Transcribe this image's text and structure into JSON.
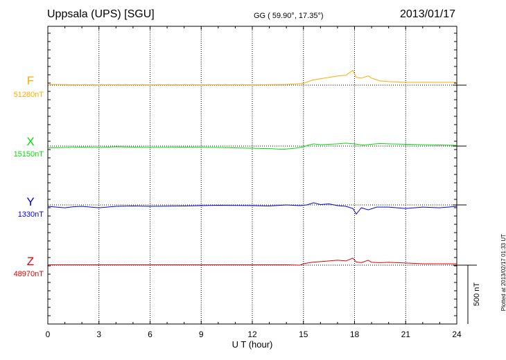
{
  "header": {
    "station": "Uppsala (UPS)  [SGU]",
    "coords": "GG ( 59.90°,  17.35°)",
    "date": "2013/01/17"
  },
  "credit": "Plotted at 2013/02/17 01:33 UT",
  "scale_label": "500 nT",
  "colors": {
    "F": "#ffaa00",
    "X": "#00dd00",
    "Y": "#0000dd",
    "Z": "#dd0000"
  },
  "chart_data": {
    "type": "line",
    "xlabel": "U T (hour)",
    "xlim": [
      0,
      24
    ],
    "x_ticks": [
      0,
      3,
      6,
      9,
      12,
      15,
      18,
      21,
      24
    ],
    "scale_bar_nT": 500,
    "components": [
      {
        "name": "F",
        "baseline": "51280nT",
        "x": [
          0,
          2,
          4,
          6,
          8,
          10,
          12,
          14,
          15,
          15.5,
          16,
          16.5,
          17,
          17.5,
          17.9,
          18.1,
          18.4,
          18.8,
          19,
          19.5,
          20,
          21,
          22,
          23,
          24
        ],
        "y": [
          2,
          1,
          1,
          1,
          1,
          1,
          1,
          2,
          5,
          14,
          18,
          22,
          26,
          28,
          42,
          22,
          20,
          26,
          20,
          12,
          10,
          8,
          8,
          8,
          8
        ]
      },
      {
        "name": "X",
        "baseline": "15150nT",
        "x": [
          0,
          1,
          2,
          3,
          4,
          6,
          8,
          10,
          12,
          13,
          13.8,
          14.5,
          15,
          15.3,
          15.6,
          16,
          17,
          17.5,
          18,
          18.5,
          19,
          19.5,
          20,
          21,
          22,
          23,
          24
        ],
        "y": [
          -5,
          -4,
          -3,
          -4,
          -2,
          -4,
          -3,
          -4,
          -6,
          -7,
          -9,
          -6,
          -2,
          3,
          6,
          4,
          6,
          8,
          6,
          3,
          5,
          7,
          6,
          5,
          4,
          3,
          2
        ]
      },
      {
        "name": "Y",
        "baseline": "1330nT",
        "x": [
          0,
          0.5,
          1,
          1.5,
          2,
          2.5,
          3,
          4,
          5,
          6,
          8,
          10,
          12,
          13,
          14,
          14.8,
          15.2,
          15.6,
          16,
          16.5,
          17,
          17.5,
          17.9,
          18.1,
          18.4,
          18.8,
          19.3,
          20,
          21,
          22,
          23,
          23.5,
          24
        ],
        "y": [
          -4,
          -6,
          -8,
          -5,
          -4,
          -6,
          -8,
          -4,
          -3,
          -4,
          -3,
          -1,
          -2,
          -3,
          0,
          -2,
          0,
          6,
          1,
          3,
          -2,
          -4,
          -10,
          -26,
          -8,
          -14,
          -6,
          -6,
          -10,
          -6,
          -8,
          -6,
          -4
        ]
      },
      {
        "name": "Z",
        "baseline": "48970nT",
        "x": [
          0,
          2,
          4,
          6,
          8,
          10,
          12,
          13,
          14,
          14.8,
          15,
          15.5,
          16,
          16.5,
          17,
          17.5,
          17.9,
          18.1,
          18.4,
          18.8,
          19,
          19.5,
          20,
          21,
          22,
          23,
          24
        ],
        "y": [
          1,
          1,
          1,
          1,
          1,
          1,
          1,
          1,
          1,
          0,
          4,
          8,
          10,
          12,
          14,
          12,
          20,
          9,
          7,
          14,
          8,
          7,
          8,
          6,
          4,
          4,
          4
        ]
      }
    ]
  }
}
